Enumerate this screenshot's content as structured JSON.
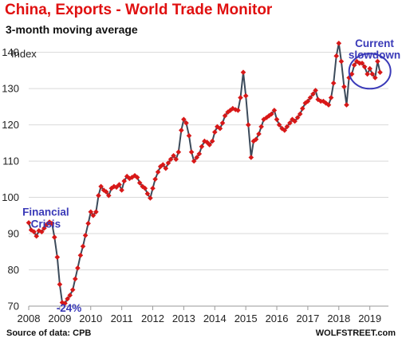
{
  "chart_data": {
    "type": "line",
    "title": "China, Exports - World Trade Monitor",
    "subtitle": "3-month moving average",
    "ylabel": "Index",
    "ylim": [
      70,
      143
    ],
    "yticks": [
      70,
      80,
      90,
      100,
      110,
      120,
      130,
      140
    ],
    "xlim": [
      2008,
      2019.6
    ],
    "xticks": [
      2008,
      2009,
      2010,
      2011,
      2012,
      2013,
      2014,
      2015,
      2016,
      2017,
      2018,
      2019
    ],
    "grid": "horizontal",
    "series": [
      {
        "color": "#3b4a5a",
        "marker_color": "#d81818",
        "x": [
          2008.0,
          2008.08,
          2008.17,
          2008.25,
          2008.33,
          2008.42,
          2008.5,
          2008.58,
          2008.67,
          2008.75,
          2008.83,
          2008.92,
          2009.0,
          2009.08,
          2009.17,
          2009.25,
          2009.33,
          2009.42,
          2009.5,
          2009.58,
          2009.67,
          2009.75,
          2009.83,
          2009.92,
          2010.0,
          2010.08,
          2010.17,
          2010.25,
          2010.33,
          2010.42,
          2010.5,
          2010.58,
          2010.67,
          2010.75,
          2010.83,
          2010.92,
          2011.0,
          2011.08,
          2011.17,
          2011.25,
          2011.33,
          2011.42,
          2011.5,
          2011.58,
          2011.67,
          2011.75,
          2011.83,
          2011.92,
          2012.0,
          2012.08,
          2012.17,
          2012.25,
          2012.33,
          2012.42,
          2012.5,
          2012.58,
          2012.67,
          2012.75,
          2012.83,
          2012.92,
          2013.0,
          2013.08,
          2013.17,
          2013.25,
          2013.33,
          2013.42,
          2013.5,
          2013.58,
          2013.67,
          2013.75,
          2013.83,
          2013.92,
          2014.0,
          2014.08,
          2014.17,
          2014.25,
          2014.33,
          2014.42,
          2014.5,
          2014.58,
          2014.67,
          2014.75,
          2014.83,
          2014.92,
          2015.0,
          2015.08,
          2015.17,
          2015.25,
          2015.33,
          2015.42,
          2015.5,
          2015.58,
          2015.67,
          2015.75,
          2015.83,
          2015.92,
          2016.0,
          2016.08,
          2016.17,
          2016.25,
          2016.33,
          2016.42,
          2016.5,
          2016.58,
          2016.67,
          2016.75,
          2016.83,
          2016.92,
          2017.0,
          2017.08,
          2017.17,
          2017.25,
          2017.33,
          2017.42,
          2017.5,
          2017.58,
          2017.67,
          2017.75,
          2017.83,
          2017.92,
          2018.0,
          2018.08,
          2018.17,
          2018.25,
          2018.33,
          2018.42,
          2018.5,
          2018.58,
          2018.67,
          2018.75,
          2018.83,
          2018.92,
          2019.0,
          2019.08,
          2019.17,
          2019.25,
          2019.33
        ],
        "y": [
          93.0,
          91.0,
          90.5,
          89.3,
          90.8,
          90.5,
          91.5,
          92.5,
          93.2,
          92.8,
          89.0,
          83.5,
          76.0,
          71.0,
          70.8,
          72.0,
          73.0,
          74.5,
          77.5,
          80.5,
          84.0,
          86.5,
          89.5,
          92.8,
          96.0,
          95.0,
          96.0,
          100.5,
          103.0,
          102.0,
          101.5,
          100.5,
          102.5,
          103.0,
          102.8,
          103.5,
          102.0,
          104.5,
          105.8,
          105.2,
          105.5,
          106.0,
          105.5,
          104.0,
          103.0,
          102.5,
          101.0,
          99.8,
          102.5,
          105.0,
          107.0,
          108.5,
          109.0,
          108.0,
          109.5,
          110.5,
          111.5,
          110.5,
          112.5,
          118.5,
          121.5,
          120.5,
          117.0,
          112.5,
          110.0,
          111.0,
          112.0,
          114.0,
          115.5,
          115.2,
          114.5,
          115.5,
          118.0,
          119.5,
          119.0,
          120.5,
          122.5,
          123.5,
          124.0,
          124.5,
          124.2,
          124.0,
          127.5,
          134.5,
          128.0,
          120.0,
          111.0,
          115.5,
          116.0,
          117.5,
          119.5,
          121.5,
          122.0,
          122.5,
          123.0,
          124.0,
          121.5,
          120.0,
          119.0,
          118.5,
          119.5,
          120.5,
          121.5,
          121.0,
          122.0,
          123.0,
          124.5,
          126.0,
          126.5,
          127.5,
          128.5,
          129.5,
          127.0,
          126.5,
          126.5,
          126.0,
          125.5,
          127.5,
          131.5,
          139.0,
          142.5,
          137.5,
          130.5,
          125.5,
          133.0,
          134.0,
          136.5,
          137.5,
          137.0,
          137.0,
          136.0,
          134.0,
          135.5,
          134.0,
          133.0,
          137.5,
          134.5
        ]
      }
    ],
    "annotations": [
      {
        "text": "Financial",
        "near_x": 2008.55,
        "near_y": 95
      },
      {
        "text": "Crisis",
        "near_x": 2008.55,
        "near_y": 91.7
      },
      {
        "text": "-24%",
        "near_x": 2009.3,
        "near_y": 68.5
      },
      {
        "text": "Current",
        "near_x": 2019.15,
        "near_y": 141.5
      },
      {
        "text": "slowdown",
        "near_x": 2019.15,
        "near_y": 138.3
      }
    ],
    "source_label": "Source of data: CPB",
    "brand_label": "WOLFSTREET.com"
  }
}
